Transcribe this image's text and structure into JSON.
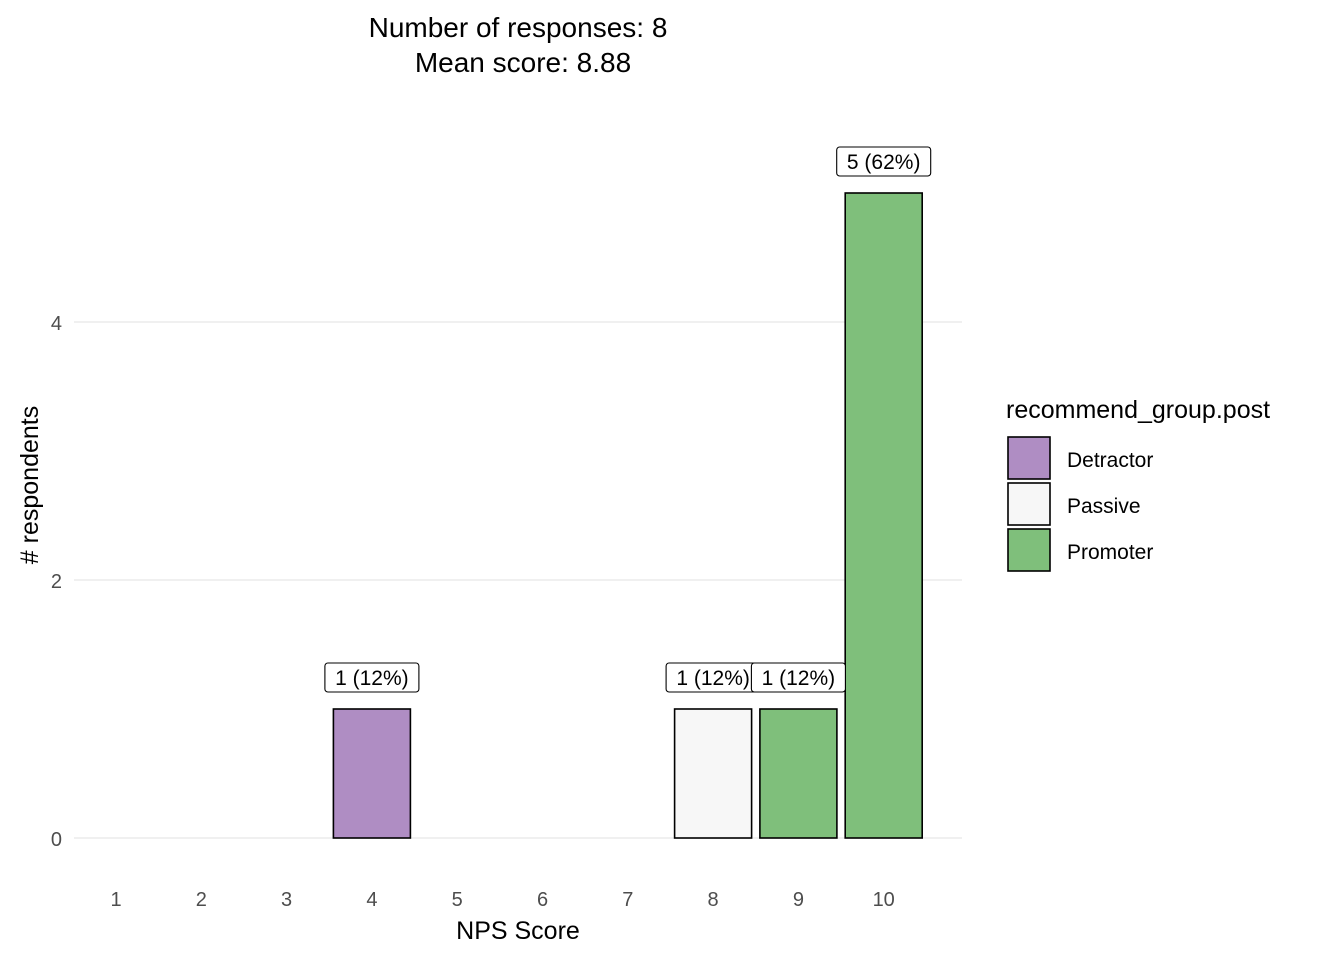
{
  "chart_data": {
    "type": "bar",
    "title_line1": "Number of responses: 8",
    "title_line2": "Mean score: 8.88",
    "xlabel": "NPS Score",
    "ylabel": "# respondents",
    "categories": [
      "1",
      "2",
      "3",
      "4",
      "5",
      "6",
      "7",
      "8",
      "9",
      "10"
    ],
    "values": [
      0,
      0,
      0,
      1,
      0,
      0,
      0,
      1,
      1,
      5
    ],
    "groups": [
      null,
      null,
      null,
      "Detractor",
      null,
      null,
      null,
      "Passive",
      "Promoter",
      "Promoter"
    ],
    "bar_labels": [
      "",
      "",
      "",
      "1 (12%)",
      "",
      "",
      "",
      "1 (12%)",
      "1 (12%)",
      "5 (62%)"
    ],
    "y_ticks": [
      0,
      2,
      4
    ],
    "ylim": [
      0,
      5
    ],
    "grid": true,
    "legend": {
      "title": "recommend_group.post",
      "position": "right",
      "items": [
        {
          "label": "Detractor",
          "color": "#af8dc3"
        },
        {
          "label": "Passive",
          "color": "#f7f7f7"
        },
        {
          "label": "Promoter",
          "color": "#7fbf7b"
        }
      ]
    }
  }
}
